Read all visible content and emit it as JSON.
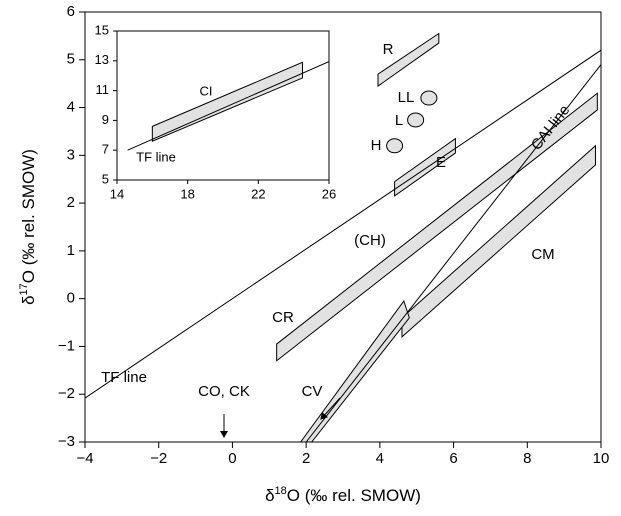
{
  "chart_data": [
    {
      "type": "isotope",
      "x_label": [
        "δ",
        "18",
        "O (‰ rel. SMOW)"
      ],
      "y_label": [
        "δ",
        "17",
        "O (‰ rel. SMOW)"
      ],
      "xlim": [
        -4,
        10
      ],
      "ylim": [
        -3,
        6
      ],
      "xticks": [
        {
          "value": -4,
          "label": "−4"
        },
        {
          "value": -2,
          "label": "−2"
        },
        0,
        2,
        4,
        6,
        8,
        10
      ],
      "yticks": [
        {
          "value": -3,
          "label": "−3"
        },
        {
          "value": -2,
          "label": "−2"
        },
        {
          "value": -1,
          "label": "−1"
        },
        0,
        1,
        2,
        3,
        4,
        5,
        6
      ],
      "line_color": "#000000",
      "region_color": "#e2e2e2",
      "lines": [
        {
          "name": "TF line",
          "x": [
            -4,
            10
          ],
          "y": [
            -2.08,
            5.2
          ]
        },
        {
          "name": "CAI line",
          "x": [
            2.0,
            10
          ],
          "y": [
            -3.0,
            4.9
          ]
        }
      ],
      "regions": [
        {
          "name": "R",
          "x": [
            3.95,
            3.95,
            5.6,
            5.6
          ],
          "y": [
            4.45,
            4.7,
            5.55,
            5.35
          ]
        },
        {
          "name": "E",
          "x": [
            4.4,
            4.4,
            6.05,
            6.05
          ],
          "y": [
            2.15,
            2.45,
            3.35,
            3.05
          ]
        },
        {
          "name": "CR",
          "x": [
            1.2,
            1.2,
            9.9,
            9.9
          ],
          "y": [
            -1.3,
            -0.95,
            4.3,
            3.95
          ]
        },
        {
          "name": "CM",
          "x": [
            4.6,
            4.6,
            9.85,
            9.85
          ],
          "y": [
            -0.8,
            -0.4,
            3.2,
            2.8
          ]
        },
        {
          "name": "CV",
          "x": [
            1.85,
            4.65,
            4.8,
            2.15
          ],
          "y": [
            -3.0,
            -0.05,
            -0.4,
            -3.0
          ]
        }
      ],
      "points": [
        {
          "name": "LL",
          "x": 5.33,
          "y": 4.2
        },
        {
          "name": "L",
          "x": 4.97,
          "y": 3.74
        },
        {
          "name": "H",
          "x": 4.4,
          "y": 3.2
        }
      ],
      "annotations": [
        "(CH)",
        "CO, CK"
      ]
    },
    {
      "type": "isotope",
      "xlim": [
        14,
        26
      ],
      "ylim": [
        5,
        15
      ],
      "xticks": [
        14,
        18,
        22,
        26
      ],
      "yticks": [
        5,
        7,
        9,
        11,
        13,
        15
      ],
      "line_color": "#000000",
      "region_color": "#e2e2e2",
      "lines": [
        {
          "name": "TF line",
          "x": [
            14.6,
            26
          ],
          "y": [
            7.0,
            12.95
          ]
        }
      ],
      "regions": [
        {
          "name": "CI",
          "x": [
            16,
            16,
            24.5,
            24.5
          ],
          "y": [
            7.6,
            8.6,
            12.9,
            11.85
          ]
        }
      ],
      "points": [],
      "annotations": []
    }
  ]
}
